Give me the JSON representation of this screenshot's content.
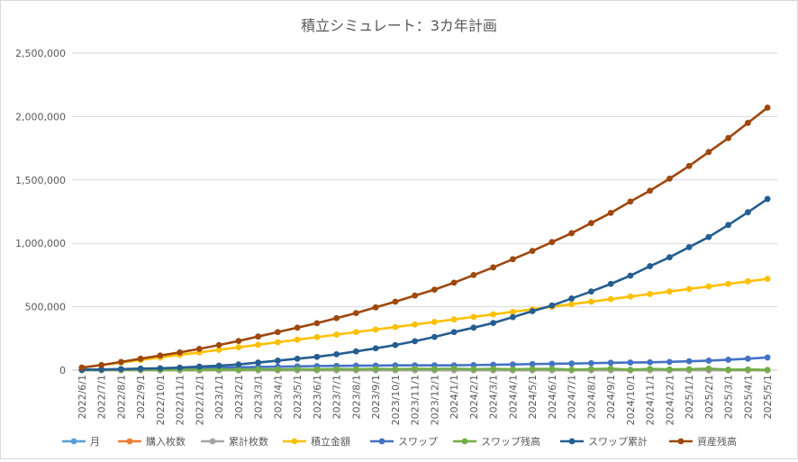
{
  "chart_data": {
    "type": "line",
    "title": "積立シミュレート：3カ年計画",
    "xlabel": "",
    "ylabel": "",
    "ylim": [
      0,
      2500000
    ],
    "yticks": [
      0,
      500000,
      1000000,
      1500000,
      2000000,
      2500000
    ],
    "ytick_labels": [
      "0",
      "500,000",
      "1,000,000",
      "1,500,000",
      "2,000,000",
      "2,500,000"
    ],
    "grid": true,
    "legend_position": "bottom",
    "categories": [
      "2022/6/1",
      "2022/7/1",
      "2022/8/1",
      "2022/9/1",
      "2022/10/1",
      "2022/11/1",
      "2022/12/1",
      "2023/1/1",
      "2023/2/1",
      "2023/3/1",
      "2023/4/1",
      "2023/5/1",
      "2023/6/1",
      "2023/7/1",
      "2023/8/1",
      "2023/9/1",
      "2023/10/1",
      "2023/11/1",
      "2023/12/1",
      "2024/1/1",
      "2024/2/1",
      "2024/3/1",
      "2024/4/1",
      "2024/5/1",
      "2024/6/1",
      "2024/7/1",
      "2024/8/1",
      "2024/9/1",
      "2024/10/1",
      "2024/11/1",
      "2024/12/1",
      "2025/1/1",
      "2025/2/1",
      "2025/3/1",
      "2025/4/1",
      "2025/5/1"
    ],
    "series": [
      {
        "name": "月",
        "color": "#5b9bd5",
        "values": [
          1,
          2,
          3,
          4,
          5,
          6,
          7,
          8,
          9,
          10,
          11,
          12,
          13,
          14,
          15,
          16,
          17,
          18,
          19,
          20,
          21,
          22,
          23,
          24,
          25,
          26,
          27,
          28,
          29,
          30,
          31,
          32,
          33,
          34,
          35,
          36
        ]
      },
      {
        "name": "購入枚数",
        "color": "#ed7d31",
        "values": [
          20,
          20,
          20,
          20,
          20,
          20,
          20,
          20,
          20,
          20,
          20,
          20,
          20,
          20,
          20,
          20,
          20,
          20,
          20,
          20,
          20,
          20,
          20,
          20,
          20,
          20,
          20,
          20,
          20,
          20,
          20,
          20,
          20,
          20,
          20,
          20
        ]
      },
      {
        "name": "累計枚数",
        "color": "#a5a5a5",
        "values": [
          20,
          40,
          60,
          80,
          100,
          120,
          140,
          160,
          180,
          200,
          220,
          240,
          260,
          280,
          300,
          320,
          340,
          360,
          380,
          400,
          420,
          440,
          460,
          480,
          500,
          520,
          540,
          560,
          580,
          600,
          620,
          640,
          660,
          680,
          700,
          720
        ]
      },
      {
        "name": "積立金額",
        "color": "#ffc000",
        "values": [
          20000,
          40000,
          60000,
          80000,
          100000,
          120000,
          140000,
          160000,
          180000,
          200000,
          220000,
          240000,
          260000,
          280000,
          300000,
          320000,
          340000,
          360000,
          380000,
          400000,
          420000,
          440000,
          460000,
          480000,
          500000,
          520000,
          540000,
          560000,
          580000,
          600000,
          620000,
          640000,
          660000,
          680000,
          700000,
          720000
        ]
      },
      {
        "name": "スワップ",
        "color": "#4472c4",
        "values": [
          3000,
          5000,
          8000,
          10000,
          12000,
          15000,
          18000,
          20000,
          22000,
          25000,
          27000,
          30000,
          32000,
          34000,
          35000,
          36000,
          38000,
          38000,
          38000,
          38000,
          40000,
          42000,
          45000,
          48000,
          50000,
          52000,
          55000,
          58000,
          60000,
          62000,
          65000,
          70000,
          75000,
          82000,
          90000,
          100000
        ]
      },
      {
        "name": "スワップ残高",
        "color": "#70ad47",
        "values": [
          1000,
          2000,
          3000,
          4000,
          2000,
          5000,
          3000,
          6000,
          4000,
          7000,
          5000,
          8000,
          6000,
          9000,
          7000,
          10000,
          8000,
          11000,
          9000,
          12000,
          8000,
          10000,
          7000,
          9000,
          10000,
          4000,
          8000,
          12000,
          3000,
          10000,
          6000,
          8000,
          12000,
          4000,
          5000,
          2000
        ]
      },
      {
        "name": "スワップ累計",
        "color": "#255e91",
        "values": [
          3000,
          5000,
          8000,
          12000,
          15000,
          20000,
          28000,
          35000,
          45000,
          60000,
          75000,
          90000,
          105000,
          125000,
          148000,
          172000,
          198000,
          228000,
          262000,
          300000,
          335000,
          372000,
          418000,
          465000,
          510000,
          565000,
          620000,
          680000,
          745000,
          820000,
          890000,
          970000,
          1050000,
          1145000,
          1245000,
          1350000
        ]
      },
      {
        "name": "資産残高",
        "color": "#9e480e",
        "values": [
          20000,
          40000,
          65000,
          90000,
          115000,
          140000,
          168000,
          198000,
          230000,
          265000,
          300000,
          335000,
          370000,
          410000,
          450000,
          495000,
          540000,
          588000,
          635000,
          690000,
          750000,
          810000,
          875000,
          940000,
          1010000,
          1080000,
          1160000,
          1240000,
          1330000,
          1415000,
          1510000,
          1610000,
          1720000,
          1830000,
          1950000,
          2070000
        ]
      }
    ]
  }
}
